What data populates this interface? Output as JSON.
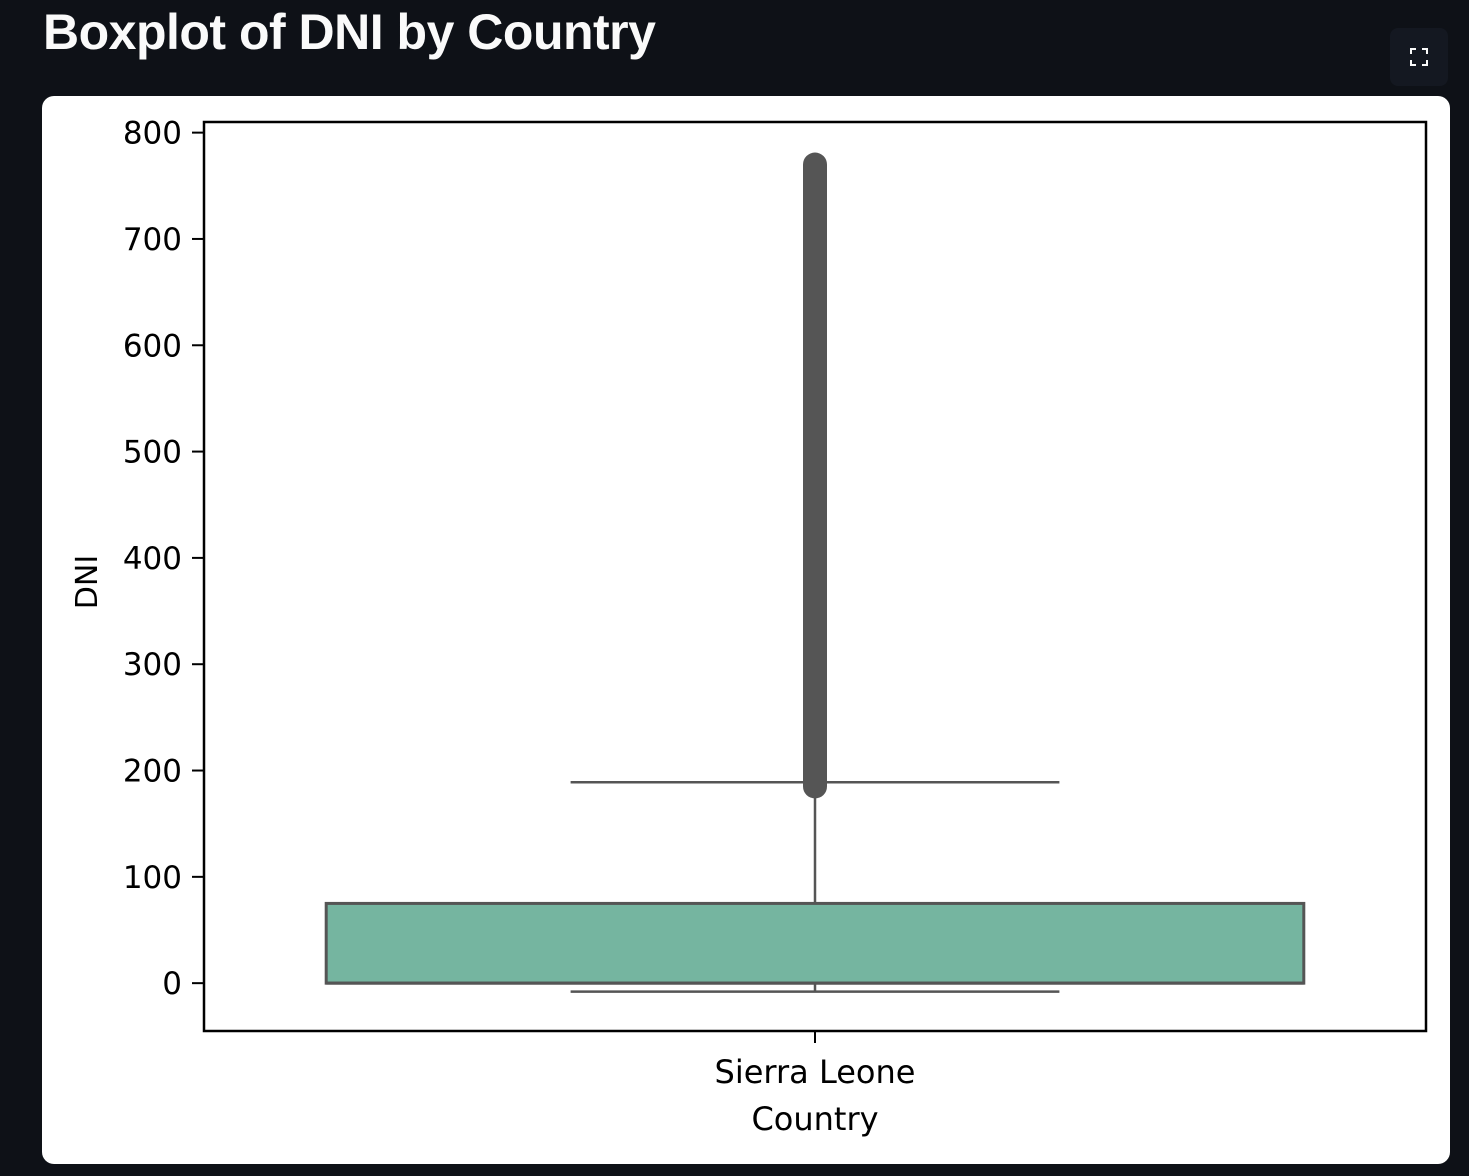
{
  "header": {
    "title": "Boxplot of DNI by Country",
    "fullscreen_icon": "expand-icon"
  },
  "chart_data": {
    "type": "boxplot",
    "title": "",
    "xlabel": "Country",
    "ylabel": "DNI",
    "categories": [
      "Sierra Leone"
    ],
    "ylim": [
      -45,
      810
    ],
    "yticks": [
      0,
      100,
      200,
      300,
      400,
      500,
      600,
      700,
      800
    ],
    "grid": false,
    "boxes": [
      {
        "category": "Sierra Leone",
        "min": -8,
        "q1": 0,
        "median": 0,
        "q3": 75,
        "max": 189,
        "outliers_range": [
          185,
          770
        ],
        "color": "#75b5a0"
      }
    ],
    "colors": {
      "box_fill": "#75b5a0",
      "box_edge": "#555555",
      "outlier": "#555555",
      "background": "#ffffff",
      "page_background": "#0e1117",
      "title_color": "#fafafa"
    }
  }
}
